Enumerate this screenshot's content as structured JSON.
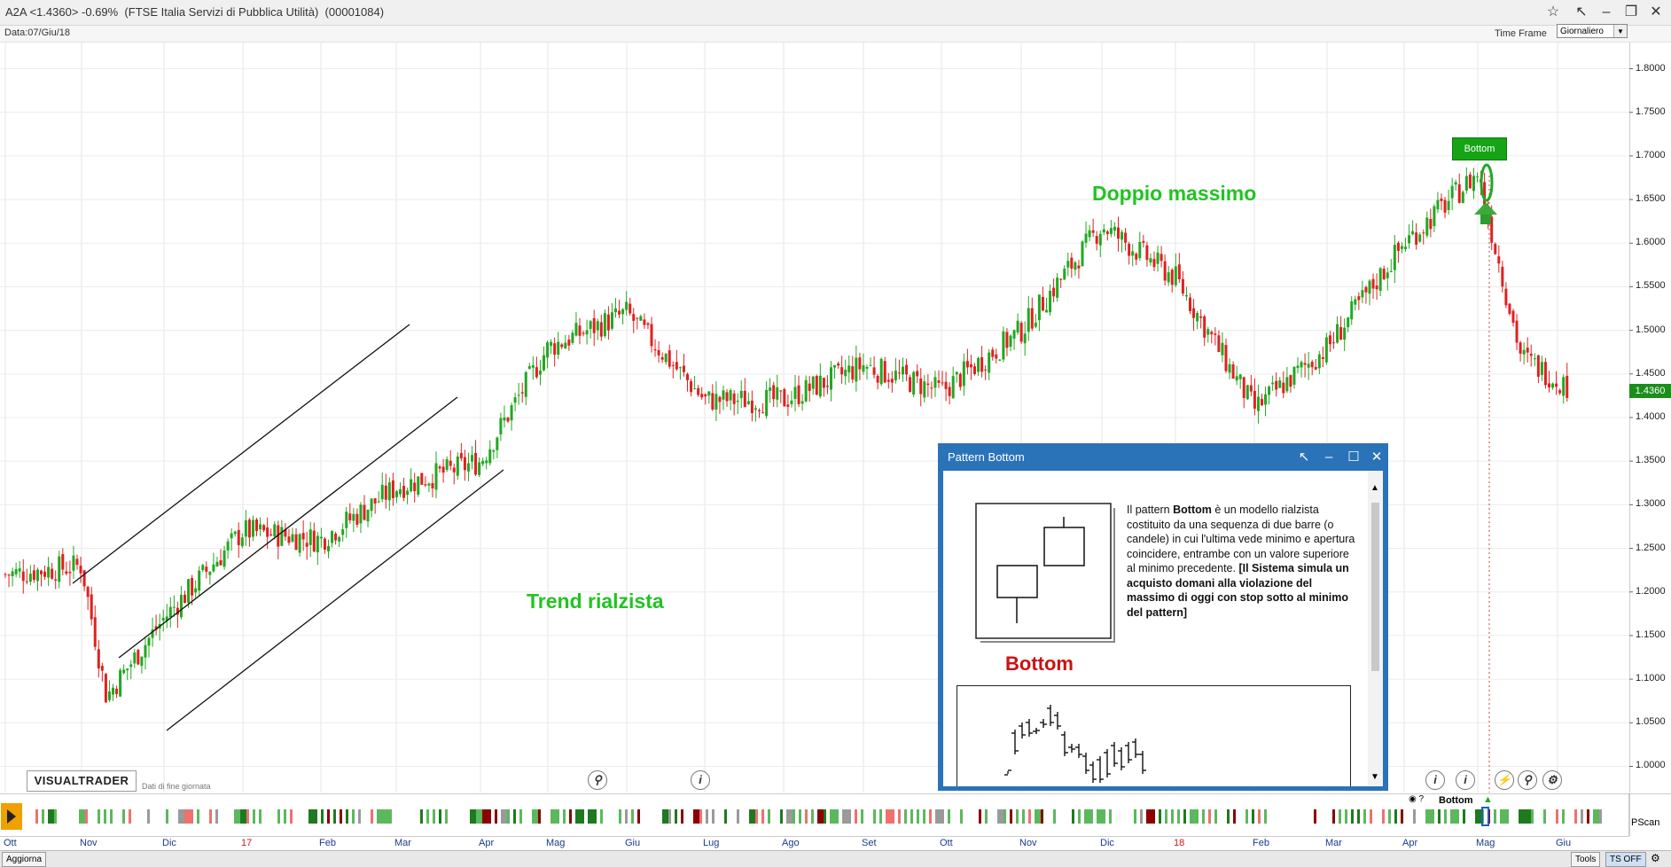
{
  "window": {
    "title": "A2A <1.4360> -0.69%  (FTSE Italia Servizi di Pubblica Utilità)  (00001084)"
  },
  "infobar": {
    "data_label": "Data:07/Giu/18",
    "timeframe_label": "Time Frame",
    "timeframe_value": "Giornaliero"
  },
  "chart": {
    "last_price": "1.4360",
    "annotations": {
      "trend": "Trend rialzista",
      "double_top": "Doppio massimo",
      "bottom_tag": "Bottom"
    },
    "logo": "VISUALTRADER",
    "logo_sub": "Dati di fine giornata"
  },
  "popup": {
    "title": "Pattern Bottom",
    "desc_prefix": "Il pattern ",
    "desc_bold": "Bottom",
    "desc_main": " è un modello rialzista costituito da una sequenza di due barre (o candele) in cui l'ultima vede minimo e apertura coincidere, entrambe con un valore superiore al minimo precedente. ",
    "desc_bold2": "[Il Sistema simula un acquisto domani alla violazione del massimo di oggi con stop sotto al minimo del pattern]",
    "heading": "Bottom"
  },
  "pscan": {
    "label": "PScan",
    "legend": "Bottom"
  },
  "statusbar": {
    "aggiorna": "Aggiorna",
    "tools": "Tools",
    "tsoff": "TS OFF"
  },
  "yaxis": [
    "1.8000",
    "1.7500",
    "1.7000",
    "1.6500",
    "1.6000",
    "1.5500",
    "1.5000",
    "1.4500",
    "1.4000",
    "1.3500",
    "1.3000",
    "1.2500",
    "1.2000",
    "1.1500",
    "1.1000",
    "1.0500",
    "1.0000"
  ],
  "xaxis": [
    "Ott",
    "Nov",
    "Dic",
    "17",
    "Feb",
    "Mar",
    "Apr",
    "Mag",
    "Giu",
    "Lug",
    "Ago",
    "Set",
    "Ott",
    "Nov",
    "Dic",
    "18",
    "Feb",
    "Mar",
    "Apr",
    "Mag",
    "Giu"
  ],
  "colors": {
    "up": "#21a821",
    "down": "#e02020",
    "annotation": "#22c322",
    "popup_frame": "#2a73b8",
    "bottom_heading": "#cc1111"
  },
  "chart_data": {
    "type": "candlestick",
    "title": "A2A",
    "ylim": [
      0.97,
      1.83
    ],
    "x_months": [
      "Ott",
      "Nov",
      "Dic",
      "17",
      "Feb",
      "Mar",
      "Apr",
      "Mag",
      "Giu",
      "Lug",
      "Ago",
      "Set",
      "Ott",
      "Nov",
      "Dic",
      "18",
      "Feb",
      "Mar",
      "Apr",
      "Mag",
      "Giu"
    ],
    "path_keypoints": [
      {
        "date": "Ott 2016",
        "close": 1.22
      },
      {
        "date": "Nov 2016",
        "close": 1.23
      },
      {
        "date": "Nov 2016 late",
        "close": 1.08
      },
      {
        "date": "Dic 2016",
        "close": 1.17
      },
      {
        "date": "Gen 2017",
        "close": 1.27
      },
      {
        "date": "Feb 2017",
        "close": 1.26
      },
      {
        "date": "Mar 2017",
        "close": 1.32
      },
      {
        "date": "Apr 2017",
        "close": 1.35
      },
      {
        "date": "Mag 2017",
        "close": 1.48
      },
      {
        "date": "Giu 2017",
        "close": 1.52
      },
      {
        "date": "Lug 2017",
        "close": 1.42
      },
      {
        "date": "Ago 2017",
        "close": 1.42
      },
      {
        "date": "Set 2017",
        "close": 1.46
      },
      {
        "date": "Ott 2017",
        "close": 1.43
      },
      {
        "date": "Nov 2017",
        "close": 1.5
      },
      {
        "date": "Dic 2017",
        "close": 1.62
      },
      {
        "date": "Gen 2018",
        "close": 1.56
      },
      {
        "date": "Feb 2018",
        "close": 1.41
      },
      {
        "date": "Mar 2018",
        "close": 1.48
      },
      {
        "date": "Apr 2018",
        "close": 1.6
      },
      {
        "date": "Mag 2018",
        "close": 1.68
      },
      {
        "date": "Mag 2018 late",
        "close": 1.47
      },
      {
        "date": "07/Giu/18",
        "close": 1.436
      }
    ],
    "last_close": 1.436,
    "change_pct": -0.69
  }
}
